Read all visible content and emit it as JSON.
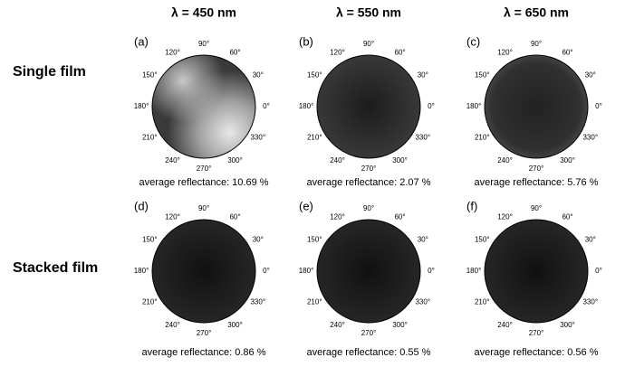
{
  "columns": [
    "λ = 450 nm",
    "λ = 550 nm",
    "λ = 650 nm"
  ],
  "rows": [
    "Single film",
    "Stacked film"
  ],
  "angle_labels": [
    "0°",
    "30°",
    "60°",
    "90°",
    "120°",
    "150°",
    "180°",
    "210°",
    "240°",
    "270°",
    "300°",
    "330°"
  ],
  "panels": [
    {
      "label": "(a)",
      "caption": "average reflectance: 10.69 %"
    },
    {
      "label": "(b)",
      "caption": "average reflectance: 2.07 %"
    },
    {
      "label": "(c)",
      "caption": "average reflectance: 5.76 %"
    },
    {
      "label": "(d)",
      "caption": "average reflectance: 0.86 %"
    },
    {
      "label": "(e)",
      "caption": "average reflectance: 0.55 %"
    },
    {
      "label": "(f)",
      "caption": "average reflectance: 0.56 %"
    }
  ]
}
